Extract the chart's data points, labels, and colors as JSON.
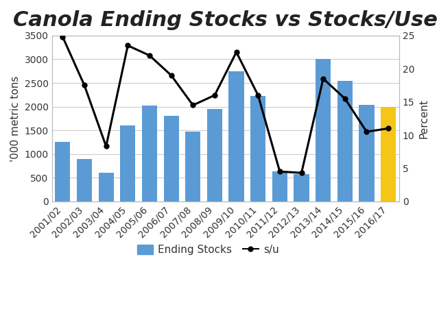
{
  "title": "Canola Ending Stocks vs Stocks/Use",
  "categories": [
    "2001/02",
    "2002/03",
    "2003/04",
    "2004/05",
    "2005/06",
    "2006/07",
    "2007/08",
    "2008/09",
    "2009/10",
    "2010/11",
    "2011/12",
    "2012/13",
    "2013/14",
    "2014/15",
    "2015/16",
    "2016/17"
  ],
  "ending_stocks": [
    1250,
    900,
    610,
    1600,
    2020,
    1800,
    1470,
    1950,
    2750,
    2220,
    630,
    580,
    3010,
    2550,
    2030,
    2000
  ],
  "bar_colors": [
    "#5b9bd5",
    "#5b9bd5",
    "#5b9bd5",
    "#5b9bd5",
    "#5b9bd5",
    "#5b9bd5",
    "#5b9bd5",
    "#5b9bd5",
    "#5b9bd5",
    "#5b9bd5",
    "#5b9bd5",
    "#5b9bd5",
    "#5b9bd5",
    "#5b9bd5",
    "#5b9bd5",
    "#f5c518"
  ],
  "stocks_use": [
    24.8,
    17.5,
    8.3,
    23.5,
    22.0,
    19.0,
    14.5,
    16.0,
    22.5,
    16.0,
    4.5,
    4.3,
    18.5,
    15.5,
    10.5,
    11.0
  ],
  "ylabel_left": "'000 metric tons",
  "ylabel_right": "Percent",
  "ylim_left": [
    0,
    3500
  ],
  "ylim_right": [
    0,
    25.0
  ],
  "yticks_left": [
    0,
    500,
    1000,
    1500,
    2000,
    2500,
    3000,
    3500
  ],
  "yticks_right": [
    0.0,
    5.0,
    10.0,
    15.0,
    20.0,
    25.0
  ],
  "background_color": "#ffffff",
  "plot_bg_color": "#ffffff",
  "text_color": "#333333",
  "grid_color": "#cccccc",
  "bar_edge_color": "none",
  "line_color": "#000000",
  "title_fontsize": 22,
  "axis_label_fontsize": 11,
  "tick_fontsize": 10,
  "legend_fontsize": 11
}
